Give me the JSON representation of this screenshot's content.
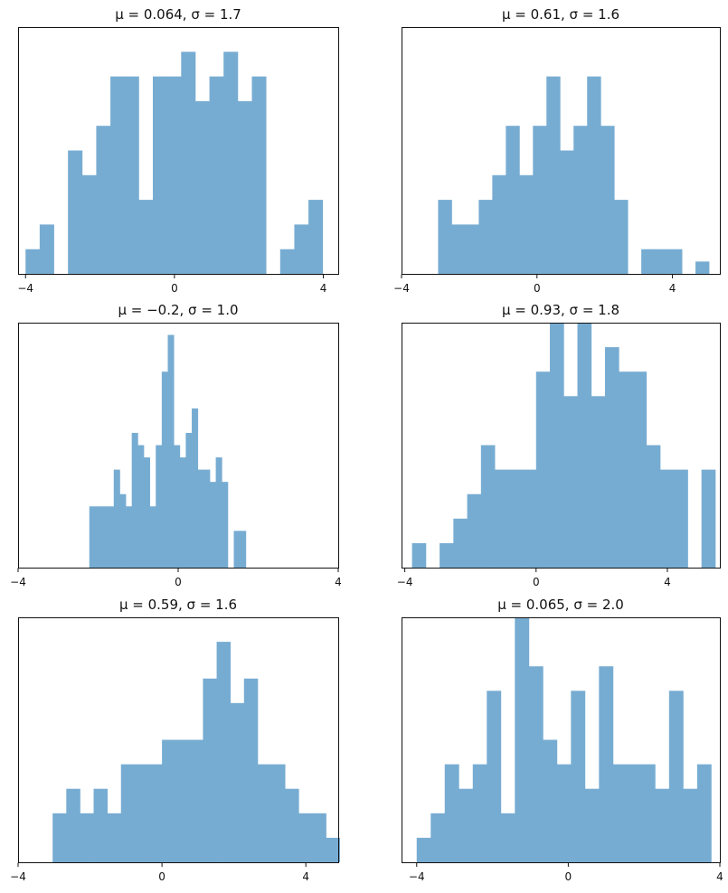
{
  "chart_data": [
    {
      "type": "bar",
      "title": "μ = 0.064,    σ = 1.7",
      "xlim": [
        -4.2,
        4.4
      ],
      "ylim": [
        0,
        1
      ],
      "xticks": [
        -4,
        0,
        4
      ],
      "xtick_labels": [
        "−4",
        "0",
        "4"
      ],
      "bins": [
        [
          -4.0,
          -3.62,
          0.1
        ],
        [
          -3.62,
          -3.24,
          0.2
        ],
        [
          -2.86,
          -2.48,
          0.5
        ],
        [
          -2.48,
          -2.1,
          0.4
        ],
        [
          -2.1,
          -1.72,
          0.6
        ],
        [
          -1.72,
          -1.34,
          0.8
        ],
        [
          -1.34,
          -0.96,
          0.8
        ],
        [
          -0.96,
          -0.58,
          0.3
        ],
        [
          -0.58,
          -0.2,
          0.8
        ],
        [
          -0.2,
          0.18,
          0.8
        ],
        [
          0.18,
          0.56,
          0.9
        ],
        [
          0.56,
          0.94,
          0.7
        ],
        [
          0.94,
          1.32,
          0.8
        ],
        [
          1.32,
          1.7,
          0.9
        ],
        [
          1.7,
          2.08,
          0.7
        ],
        [
          2.08,
          2.46,
          0.8
        ],
        [
          2.84,
          3.22,
          0.1
        ],
        [
          3.22,
          3.6,
          0.2
        ],
        [
          3.6,
          3.98,
          0.3
        ]
      ]
    },
    {
      "type": "bar",
      "title": "μ = 0.61,    σ = 1.6",
      "xlim": [
        -4.0,
        5.4
      ],
      "ylim": [
        0,
        1
      ],
      "xticks": [
        -4,
        0,
        4
      ],
      "xtick_labels": [
        "−4",
        "0",
        "4"
      ],
      "bins": [
        [
          -2.92,
          -2.52,
          0.3
        ],
        [
          -2.52,
          -2.12,
          0.2
        ],
        [
          -2.12,
          -1.72,
          0.2
        ],
        [
          -1.72,
          -1.32,
          0.3
        ],
        [
          -1.32,
          -0.92,
          0.4
        ],
        [
          -0.92,
          -0.52,
          0.6
        ],
        [
          -0.52,
          -0.12,
          0.4
        ],
        [
          -0.12,
          0.28,
          0.6
        ],
        [
          0.28,
          0.68,
          0.8
        ],
        [
          0.68,
          1.08,
          0.5
        ],
        [
          1.08,
          1.48,
          0.6
        ],
        [
          1.48,
          1.88,
          0.8
        ],
        [
          1.88,
          2.28,
          0.6
        ],
        [
          2.28,
          2.68,
          0.3
        ],
        [
          3.08,
          3.48,
          0.1
        ],
        [
          3.48,
          3.88,
          0.1
        ],
        [
          3.88,
          4.28,
          0.1
        ],
        [
          4.68,
          5.08,
          0.05
        ]
      ]
    },
    {
      "type": "bar",
      "title": "μ = −0.2,    σ = 1.0",
      "xlim": [
        -4,
        4
      ],
      "ylim": [
        0,
        1
      ],
      "xticks": [
        -4,
        0,
        4
      ],
      "xtick_labels": [
        "−4",
        "0",
        "4"
      ],
      "bins": [
        [
          -2.22,
          -1.76,
          0.25
        ],
        [
          -1.76,
          -1.61,
          0.25
        ],
        [
          -1.61,
          -1.46,
          0.4
        ],
        [
          -1.46,
          -1.31,
          0.3
        ],
        [
          -1.31,
          -1.16,
          0.25
        ],
        [
          -1.16,
          -1.01,
          0.55
        ],
        [
          -1.01,
          -0.86,
          0.5
        ],
        [
          -0.86,
          -0.71,
          0.45
        ],
        [
          -0.71,
          -0.56,
          0.25
        ],
        [
          -0.56,
          -0.41,
          0.5
        ],
        [
          -0.41,
          -0.26,
          0.8
        ],
        [
          -0.26,
          -0.11,
          0.95
        ],
        [
          -0.11,
          0.04,
          0.5
        ],
        [
          0.04,
          0.19,
          0.45
        ],
        [
          0.19,
          0.34,
          0.55
        ],
        [
          0.34,
          0.49,
          0.65
        ],
        [
          0.49,
          0.64,
          0.4
        ],
        [
          0.64,
          0.79,
          0.4
        ],
        [
          0.79,
          0.94,
          0.35
        ],
        [
          0.94,
          1.09,
          0.45
        ],
        [
          1.09,
          1.24,
          0.35
        ],
        [
          1.39,
          1.54,
          0.15
        ],
        [
          1.54,
          1.69,
          0.15
        ]
      ]
    },
    {
      "type": "bar",
      "title": "μ = 0.93,    σ = 1.8",
      "xlim": [
        -4.1,
        5.6
      ],
      "ylim": [
        0,
        1
      ],
      "xticks": [
        -4,
        0,
        4
      ],
      "xtick_labels": [
        "−4",
        "0",
        "4"
      ],
      "bins": [
        [
          -3.78,
          -3.36,
          0.1
        ],
        [
          -2.94,
          -2.52,
          0.1
        ],
        [
          -2.52,
          -2.1,
          0.2
        ],
        [
          -2.1,
          -1.68,
          0.3
        ],
        [
          -1.68,
          -1.26,
          0.5
        ],
        [
          -1.26,
          -0.84,
          0.4
        ],
        [
          -0.84,
          -0.42,
          0.4
        ],
        [
          -0.42,
          0.0,
          0.4
        ],
        [
          0.0,
          0.42,
          0.8
        ],
        [
          0.42,
          0.84,
          1.0
        ],
        [
          0.84,
          1.26,
          0.7
        ],
        [
          1.26,
          1.68,
          1.0
        ],
        [
          1.68,
          2.1,
          0.7
        ],
        [
          2.1,
          2.52,
          0.9
        ],
        [
          2.52,
          2.94,
          0.8
        ],
        [
          2.94,
          3.36,
          0.8
        ],
        [
          3.36,
          3.78,
          0.5
        ],
        [
          3.78,
          4.2,
          0.4
        ],
        [
          4.2,
          4.62,
          0.4
        ],
        [
          5.04,
          5.46,
          0.4
        ]
      ]
    },
    {
      "type": "bar",
      "title": "μ = 0.59,    σ = 1.6",
      "xlim": [
        -4,
        4.9
      ],
      "ylim": [
        0,
        1
      ],
      "xticks": [
        -4,
        0,
        4
      ],
      "xtick_labels": [
        "−4",
        "0",
        "4"
      ],
      "bins": [
        [
          -3.04,
          -2.66,
          0.2
        ],
        [
          -2.66,
          -2.28,
          0.3
        ],
        [
          -2.28,
          -1.9,
          0.2
        ],
        [
          -1.9,
          -1.52,
          0.3
        ],
        [
          -1.52,
          -1.14,
          0.2
        ],
        [
          -1.14,
          -0.76,
          0.4
        ],
        [
          -0.76,
          -0.38,
          0.4
        ],
        [
          -0.38,
          0.0,
          0.4
        ],
        [
          0.0,
          0.38,
          0.5
        ],
        [
          0.38,
          0.76,
          0.5
        ],
        [
          0.76,
          1.14,
          0.5
        ],
        [
          1.14,
          1.52,
          0.75
        ],
        [
          1.52,
          1.9,
          0.9
        ],
        [
          1.9,
          2.28,
          0.65
        ],
        [
          2.28,
          2.66,
          0.75
        ],
        [
          2.66,
          3.04,
          0.4
        ],
        [
          3.04,
          3.42,
          0.4
        ],
        [
          3.42,
          3.8,
          0.3
        ],
        [
          3.8,
          4.18,
          0.2
        ],
        [
          4.18,
          4.56,
          0.2
        ],
        [
          4.56,
          4.94,
          0.1
        ]
      ]
    },
    {
      "type": "bar",
      "title": "μ = 0.065,    σ = 2.0",
      "xlim": [
        -4.4,
        4.0
      ],
      "ylim": [
        0,
        1
      ],
      "xticks": [
        -4,
        0,
        4
      ],
      "xtick_labels": [
        "−4",
        "0",
        "4"
      ],
      "bins": [
        [
          -4.0,
          -3.63,
          0.1
        ],
        [
          -3.63,
          -3.26,
          0.2
        ],
        [
          -3.26,
          -2.89,
          0.4
        ],
        [
          -2.89,
          -2.52,
          0.3
        ],
        [
          -2.52,
          -2.15,
          0.4
        ],
        [
          -2.15,
          -1.78,
          0.7
        ],
        [
          -1.78,
          -1.41,
          0.2
        ],
        [
          -1.41,
          -1.04,
          1.0
        ],
        [
          -1.04,
          -0.67,
          0.8
        ],
        [
          -0.67,
          -0.3,
          0.5
        ],
        [
          -0.3,
          0.07,
          0.4
        ],
        [
          0.07,
          0.44,
          0.7
        ],
        [
          0.44,
          0.81,
          0.3
        ],
        [
          0.81,
          1.18,
          0.8
        ],
        [
          1.18,
          1.55,
          0.4
        ],
        [
          1.55,
          1.92,
          0.4
        ],
        [
          1.92,
          2.29,
          0.4
        ],
        [
          2.29,
          2.66,
          0.3
        ],
        [
          2.66,
          3.03,
          0.7
        ],
        [
          3.03,
          3.4,
          0.3
        ],
        [
          3.4,
          3.77,
          0.4
        ]
      ]
    }
  ],
  "style": {
    "bar_color": "#77acd2"
  }
}
